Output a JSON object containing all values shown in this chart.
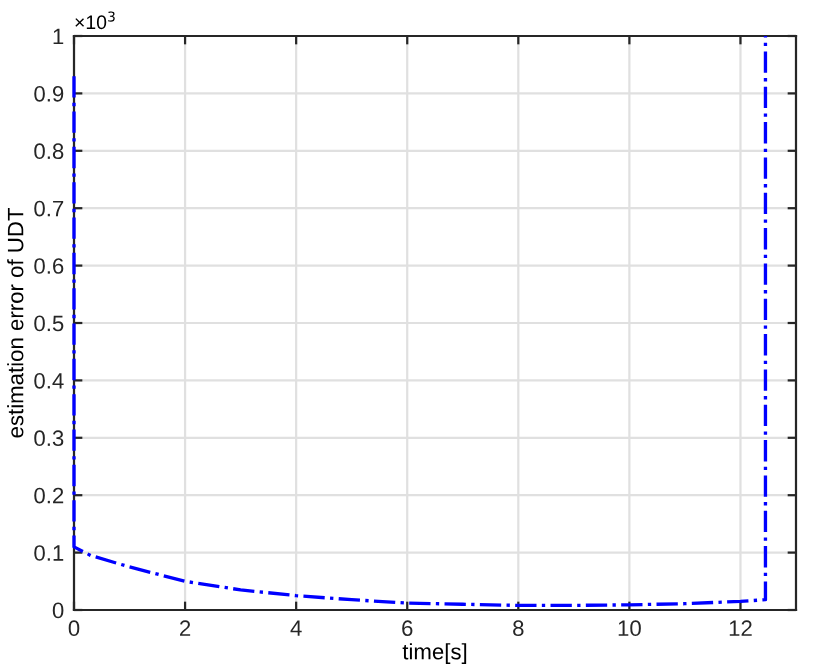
{
  "chart_data": {
    "type": "line",
    "xlabel": "time[s]",
    "ylabel": "estimation error of UDT",
    "annotations": [
      "×10$^{3}$"
    ],
    "x": [
      0,
      0,
      0.3,
      1,
      2,
      3,
      4,
      5,
      6,
      7,
      8,
      9,
      10,
      11,
      12,
      12.45,
      12.45
    ],
    "series": [
      {
        "color": "#0000ff",
        "values": [
          0.93,
          0.11,
          0.095,
          0.075,
          0.05,
          0.035,
          0.025,
          0.018,
          0.012,
          0.01,
          0.008,
          0.008,
          0.009,
          0.011,
          0.015,
          0.018,
          1.0
        ]
      }
    ],
    "line_style": "dashdot",
    "xlim": [
      0,
      13
    ],
    "xticks": [
      0,
      2,
      4,
      6,
      8,
      10,
      12
    ],
    "ylim": [
      0,
      1
    ],
    "yticks": [
      0,
      0.1,
      0.2,
      0.3,
      0.4,
      0.5,
      0.6,
      0.7,
      0.8,
      0.9,
      1
    ],
    "grid": true
  }
}
